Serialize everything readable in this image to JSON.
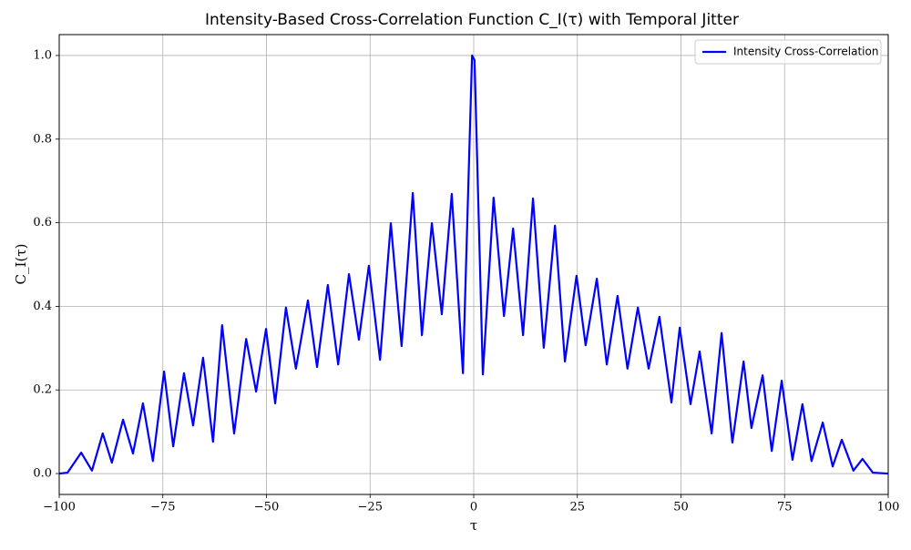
{
  "chart_data": {
    "type": "line",
    "title": "Intensity-Based Cross-Correlation Function C_I(τ) with Temporal Jitter",
    "x_label": "τ",
    "y_label": "C_I(τ)",
    "x": [
      -100,
      -98,
      -94.7,
      -92.1,
      -89.5,
      -87.3,
      -84.6,
      -82.2,
      -79.8,
      -77.4,
      -74.7,
      -72.5,
      -69.9,
      -67.7,
      -65.3,
      -62.9,
      -60.7,
      -57.8,
      -54.9,
      -52.5,
      -50.1,
      -47.9,
      -45.3,
      -42.9,
      -40.0,
      -37.8,
      -35.2,
      -32.7,
      -30.1,
      -27.7,
      -25.3,
      -22.6,
      -20.0,
      -17.4,
      -14.7,
      -12.5,
      -10.1,
      -7.7,
      -5.3,
      -2.6,
      -0.4,
      0.2,
      2.2,
      4.8,
      7.3,
      9.5,
      11.9,
      14.3,
      16.9,
      19.6,
      22.0,
      24.8,
      27.0,
      29.7,
      32.1,
      34.7,
      37.1,
      39.6,
      42.2,
      44.8,
      47.7,
      49.7,
      52.3,
      54.5,
      57.4,
      59.8,
      62.4,
      65.1,
      67.0,
      69.7,
      71.9,
      74.3,
      76.9,
      79.3,
      81.5,
      84.2,
      86.6,
      88.8,
      91.6,
      93.8,
      96.3,
      100
    ],
    "series": [
      {
        "name": "Intensity Cross-Correlation",
        "color": "#0000ff",
        "values": [
          0.0,
          0.002,
          0.05,
          0.007,
          0.096,
          0.026,
          0.129,
          0.048,
          0.168,
          0.03,
          0.244,
          0.065,
          0.24,
          0.115,
          0.277,
          0.076,
          0.355,
          0.096,
          0.322,
          0.196,
          0.346,
          0.168,
          0.397,
          0.251,
          0.414,
          0.255,
          0.451,
          0.261,
          0.477,
          0.32,
          0.497,
          0.272,
          0.599,
          0.305,
          0.671,
          0.331,
          0.599,
          0.381,
          0.669,
          0.24,
          1.0,
          0.989,
          0.237,
          0.66,
          0.377,
          0.586,
          0.331,
          0.658,
          0.301,
          0.593,
          0.268,
          0.473,
          0.307,
          0.466,
          0.261,
          0.425,
          0.251,
          0.397,
          0.251,
          0.375,
          0.17,
          0.349,
          0.166,
          0.292,
          0.096,
          0.336,
          0.074,
          0.268,
          0.109,
          0.235,
          0.054,
          0.222,
          0.033,
          0.166,
          0.03,
          0.122,
          0.017,
          0.081,
          0.007,
          0.035,
          0.002,
          0.0
        ]
      }
    ],
    "xlim": [
      -100,
      100
    ],
    "xticks": [
      {
        "value": -100,
        "label": "−100"
      },
      {
        "value": -75,
        "label": "−75"
      },
      {
        "value": -50,
        "label": "−50"
      },
      {
        "value": -25,
        "label": "−25"
      },
      0,
      25,
      50,
      75,
      100
    ],
    "ylim": [
      -0.05,
      1.05
    ],
    "yticks": [
      {
        "value": 0,
        "label": "0.0"
      },
      0.2,
      0.4,
      0.6,
      0.8,
      {
        "value": 1,
        "label": "1.0"
      }
    ],
    "grid": true,
    "legend": "upper right"
  }
}
